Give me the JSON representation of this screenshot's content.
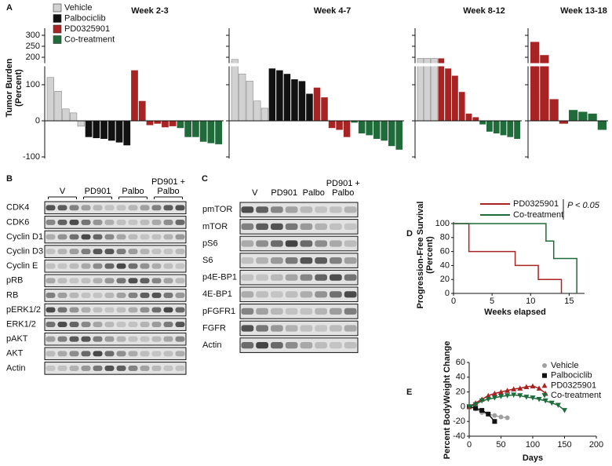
{
  "chart_data": [
    {
      "type": "waterfall",
      "panel": "A",
      "ylabel": [
        "Tumor Burden",
        "(Percent)"
      ],
      "ylim": [
        -100,
        325
      ],
      "ybreak": [
        150,
        175
      ],
      "yticks": [
        -100,
        0,
        100,
        200,
        250,
        300
      ],
      "legend": [
        {
          "name": "Vehicle",
          "color": "#d2d2d2"
        },
        {
          "name": "Palbociclib",
          "color": "#111111"
        },
        {
          "name": "PD0325901",
          "color": "#a82424"
        },
        {
          "name": "Co-treatment",
          "color": "#1f6b3a"
        }
      ],
      "panels": [
        {
          "title": "Week 2-3",
          "series": [
            {
              "values": [
                120,
                82,
                33,
                22,
                -15
              ]
            },
            {
              "values": [
                -45,
                -48,
                -50,
                -55,
                -60,
                -68
              ]
            },
            {
              "values": [
                140,
                55,
                -12,
                -8,
                -18,
                -15
              ]
            },
            {
              "values": [
                -20,
                -45,
                -45,
                -58,
                -62,
                -65
              ]
            }
          ]
        },
        {
          "title": "Week 4-7",
          "series": [
            {
              "values": [
                190,
                130,
                110,
                55,
                35
              ]
            },
            {
              "values": [
                145,
                140,
                130,
                115,
                110,
                75
              ]
            },
            {
              "values": [
                92,
                65,
                -20,
                -25,
                -45
              ]
            },
            {
              "values": [
                -5,
                -35,
                -40,
                -50,
                -55,
                -70,
                -80
              ]
            }
          ]
        },
        {
          "title": "Week 8-12",
          "series": [
            {
              "values": [
                195,
                195,
                195
              ]
            },
            {
              "values": []
            },
            {
              "values": [
                195,
                145,
                125,
                80,
                20,
                10
              ]
            },
            {
              "values": [
                -10,
                -30,
                -35,
                -40,
                -45,
                -50
              ]
            }
          ]
        },
        {
          "title": "Week 13-18",
          "series": [
            {
              "values": []
            },
            {
              "values": []
            },
            {
              "values": [
                270,
                210,
                60,
                -8
              ]
            },
            {
              "values": [
                30,
                25,
                20,
                -25
              ]
            }
          ]
        }
      ]
    },
    {
      "type": "survival",
      "panel": "D",
      "ylabel": [
        "Progression-Free Survival",
        "(Percent)"
      ],
      "xlabel": "Weeks elapsed",
      "xlim": [
        0,
        17
      ],
      "xticks": [
        0,
        5,
        10,
        15
      ],
      "ylim": [
        0,
        100
      ],
      "yticks": [
        0,
        20,
        40,
        60,
        80,
        100
      ],
      "annotation": "P < 0.05",
      "series": [
        {
          "name": "PD0325901",
          "color": "#a82424",
          "x": [
            0,
            2,
            2,
            8,
            8,
            11,
            11,
            14,
            14
          ],
          "values": [
            100,
            100,
            60,
            60,
            40,
            40,
            20,
            20,
            0
          ]
        },
        {
          "name": "Co-treatment",
          "color": "#1f6b3a",
          "x": [
            0,
            12,
            12,
            13,
            13,
            16,
            16
          ],
          "values": [
            100,
            100,
            75,
            75,
            50,
            50,
            0
          ]
        }
      ]
    },
    {
      "type": "line",
      "panel": "E",
      "ylabel": "Percent BodyWeight Change",
      "xlabel": "Days",
      "xlim": [
        0,
        200
      ],
      "xticks": [
        0,
        50,
        100,
        150,
        200
      ],
      "ylim": [
        -40,
        60
      ],
      "yticks": [
        -40,
        -20,
        0,
        20,
        40,
        60
      ],
      "series": [
        {
          "name": "Vehicle",
          "color": "#a0a0a0",
          "marker": "circle",
          "x": [
            0,
            10,
            20,
            30,
            40,
            50,
            60
          ],
          "values": [
            0,
            -3,
            -8,
            -10,
            -12,
            -14,
            -15
          ]
        },
        {
          "name": "Palbociclib",
          "color": "#111111",
          "marker": "square",
          "x": [
            0,
            10,
            20,
            30,
            40
          ],
          "values": [
            0,
            -2,
            -5,
            -10,
            -20
          ]
        },
        {
          "name": "PD0325901",
          "color": "#a82424",
          "marker": "triangle-up",
          "x": [
            0,
            10,
            20,
            30,
            40,
            50,
            60,
            70,
            80,
            90,
            100,
            110,
            120
          ],
          "values": [
            0,
            5,
            10,
            15,
            18,
            20,
            22,
            24,
            25,
            27,
            28,
            25,
            18
          ]
        },
        {
          "name": "Co-treatment",
          "color": "#1f6b3a",
          "marker": "triangle-down",
          "x": [
            0,
            10,
            20,
            30,
            40,
            50,
            60,
            70,
            80,
            90,
            100,
            110,
            120,
            130,
            140,
            150
          ],
          "values": [
            0,
            3,
            8,
            10,
            12,
            14,
            15,
            16,
            15,
            13,
            12,
            10,
            8,
            5,
            2,
            -5
          ]
        }
      ]
    }
  ],
  "blots": [
    {
      "panel": "B",
      "lanes": [
        "V",
        "PD901",
        "Palbo",
        "PD901 + Palbo"
      ],
      "rows": [
        "CDK4",
        "CDK6",
        "Cyclin D1",
        "Cyclin D3",
        "Cyclin E",
        "pRB",
        "RB",
        "pERK1/2",
        "ERK1/2",
        "pAKT",
        "AKT",
        "Actin"
      ]
    },
    {
      "panel": "C",
      "lanes": [
        "V",
        "PD901",
        "Palbo",
        "PD901 + Palbo"
      ],
      "rows": [
        "pmTOR",
        "mTOR",
        "pS6",
        "S6",
        "p4E-BP1",
        "4E-BP1",
        "pFGFR1",
        "FGFR",
        "Actin"
      ]
    }
  ]
}
